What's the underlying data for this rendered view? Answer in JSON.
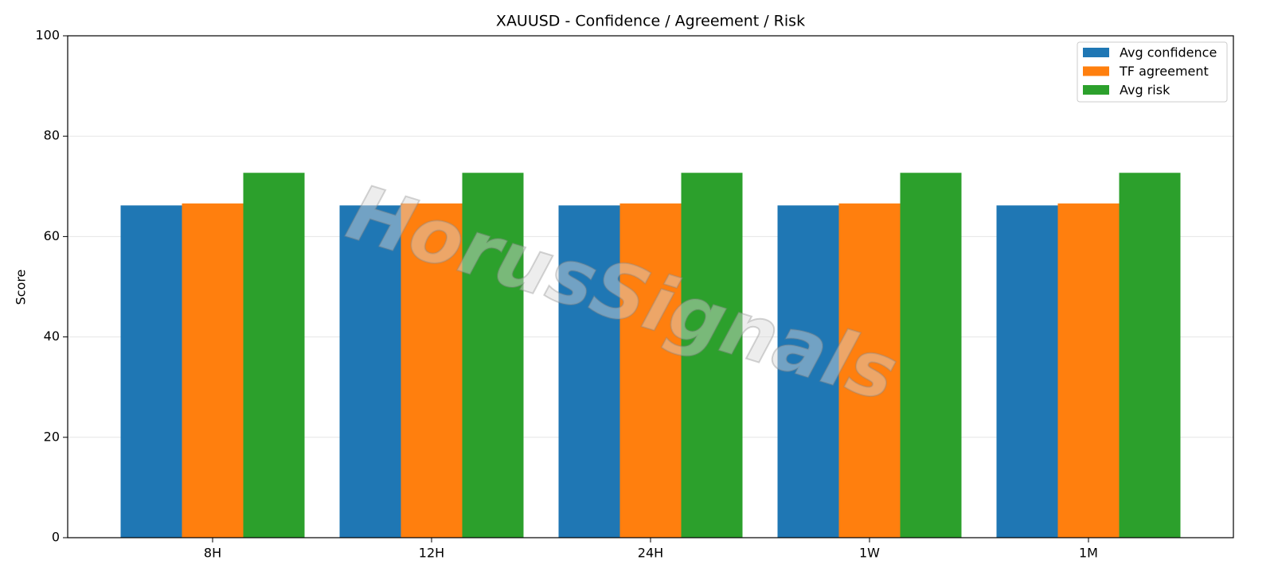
{
  "chart_data": {
    "type": "bar",
    "title": "XAUUSD - Confidence / Agreement / Risk",
    "y_label": "Score",
    "watermark": "HorusSignals",
    "categories": [
      "8H",
      "12H",
      "24H",
      "1W",
      "1M"
    ],
    "series": [
      {
        "name": "Avg confidence",
        "color": "#1f77b4",
        "values": [
          66.2,
          66.2,
          66.2,
          66.2,
          66.2
        ]
      },
      {
        "name": "TF agreement",
        "color": "#ff7f0e",
        "values": [
          66.6,
          66.6,
          66.6,
          66.6,
          66.6
        ]
      },
      {
        "name": "Avg risk",
        "color": "#2ca02c",
        "values": [
          72.7,
          72.7,
          72.7,
          72.7,
          72.7
        ]
      }
    ],
    "ylim": [
      0,
      100
    ],
    "yticks": [
      0,
      20,
      40,
      60,
      80,
      100
    ],
    "grid": true,
    "legend": "upper right"
  }
}
